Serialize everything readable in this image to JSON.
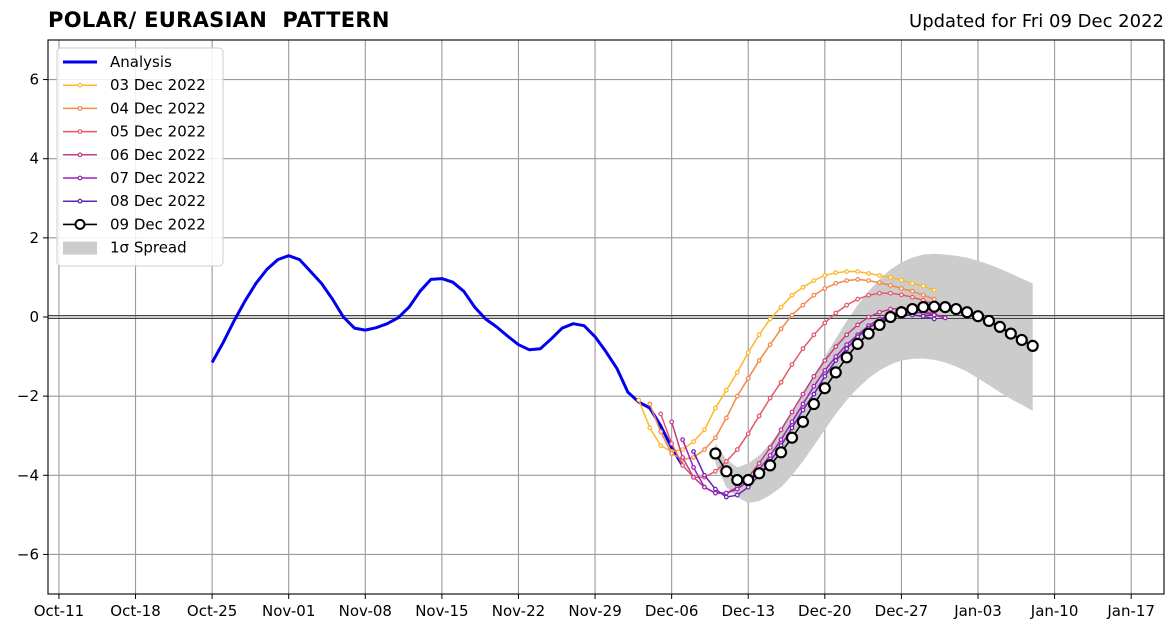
{
  "title": "POLAR/ EURASIAN  PATTERN",
  "updated": "Updated for Fri 09 Dec 2022",
  "chart_data": {
    "type": "line",
    "title": "POLAR/ EURASIAN  PATTERN",
    "subtitle": "Updated for Fri 09 Dec 2022",
    "xlabel": "",
    "ylabel": "",
    "xlim": [
      "2022-10-10",
      "2023-01-20"
    ],
    "ylim": [
      -7,
      7
    ],
    "grid": true,
    "legend_position": "top-left",
    "x_ticks": [
      "Oct-11",
      "Oct-18",
      "Oct-25",
      "Nov-01",
      "Nov-08",
      "Nov-15",
      "Nov-22",
      "Nov-29",
      "Dec-06",
      "Dec-13",
      "Dec-20",
      "Dec-27",
      "Jan-03",
      "Jan-10",
      "Jan-17"
    ],
    "x_tick_dates": [
      "2022-10-11",
      "2022-10-18",
      "2022-10-25",
      "2022-11-01",
      "2022-11-08",
      "2022-11-15",
      "2022-11-22",
      "2022-11-29",
      "2022-12-06",
      "2022-12-13",
      "2022-12-20",
      "2022-12-27",
      "2023-01-03",
      "2023-01-10",
      "2023-01-17"
    ],
    "y_ticks": [
      -6,
      -4,
      -2,
      0,
      2,
      4,
      6
    ],
    "y_tick_labels": [
      "−6",
      "−4",
      "−2",
      "0",
      "2",
      "4",
      "6"
    ],
    "legend": [
      "Analysis",
      "03 Dec 2022",
      "04 Dec 2022",
      "05 Dec 2022",
      "06 Dec 2022",
      "07 Dec 2022",
      "08 Dec 2022",
      "09 Dec 2022",
      "1σ Spread"
    ],
    "series": [
      {
        "name": "Analysis",
        "color": "#0000ee",
        "start": "2022-10-25",
        "values": [
          -1.15,
          -0.65,
          -0.1,
          0.4,
          0.85,
          1.2,
          1.45,
          1.55,
          1.45,
          1.15,
          0.85,
          0.45,
          0.0,
          -0.28,
          -0.33,
          -0.27,
          -0.17,
          -0.02,
          0.25,
          0.65,
          0.95,
          0.97,
          0.88,
          0.65,
          0.25,
          -0.05,
          -0.25,
          -0.48,
          -0.7,
          -0.83,
          -0.8,
          -0.55,
          -0.28,
          -0.17,
          -0.22,
          -0.5,
          -0.88,
          -1.3,
          -1.9,
          -2.15,
          -2.3,
          -2.75,
          -3.3,
          -3.75
        ]
      },
      {
        "name": "03 Dec 2022",
        "color": "#fdb827",
        "start": "2022-12-03",
        "values": [
          -2.1,
          -2.8,
          -3.25,
          -3.4,
          -3.35,
          -3.15,
          -2.85,
          -2.3,
          -1.85,
          -1.4,
          -0.9,
          -0.45,
          -0.05,
          0.25,
          0.55,
          0.75,
          0.92,
          1.05,
          1.12,
          1.15,
          1.15,
          1.1,
          1.05,
          1.0,
          0.93,
          0.85,
          0.78,
          0.68
        ]
      },
      {
        "name": "04 Dec 2022",
        "color": "#f4874a",
        "start": "2022-12-04",
        "values": [
          -2.2,
          -2.9,
          -3.45,
          -3.6,
          -3.55,
          -3.35,
          -3.05,
          -2.55,
          -2.0,
          -1.55,
          -1.1,
          -0.7,
          -0.3,
          0.05,
          0.3,
          0.55,
          0.72,
          0.85,
          0.92,
          0.95,
          0.92,
          0.87,
          0.8,
          0.72,
          0.65,
          0.55,
          0.45
        ]
      },
      {
        "name": "05 Dec 2022",
        "color": "#e3596a",
        "start": "2022-12-05",
        "values": [
          -2.45,
          -3.2,
          -3.75,
          -4.05,
          -4.05,
          -3.9,
          -3.65,
          -3.35,
          -2.95,
          -2.5,
          -2.05,
          -1.65,
          -1.2,
          -0.8,
          -0.45,
          -0.15,
          0.1,
          0.3,
          0.45,
          0.55,
          0.6,
          0.6,
          0.56,
          0.5,
          0.42,
          0.32,
          0.2
        ]
      },
      {
        "name": "06 Dec 2022",
        "color": "#c13d85",
        "start": "2022-12-06",
        "values": [
          -2.65,
          -3.55,
          -4.05,
          -4.3,
          -4.45,
          -4.45,
          -4.3,
          -4.05,
          -3.7,
          -3.3,
          -2.85,
          -2.4,
          -1.95,
          -1.5,
          -1.1,
          -0.75,
          -0.45,
          -0.2,
          0.0,
          0.12,
          0.2,
          0.22,
          0.2,
          0.15,
          0.08,
          -0.02
        ]
      },
      {
        "name": "07 Dec 2022",
        "color": "#a020b8",
        "start": "2022-12-07",
        "values": [
          -3.1,
          -3.8,
          -4.3,
          -4.45,
          -4.45,
          -4.35,
          -4.15,
          -3.85,
          -3.5,
          -3.1,
          -2.65,
          -2.2,
          -1.75,
          -1.35,
          -1.0,
          -0.7,
          -0.45,
          -0.22,
          -0.05,
          0.05,
          0.1,
          0.12,
          0.1,
          0.05,
          -0.02
        ]
      },
      {
        "name": "08 Dec 2022",
        "color": "#6a1fb0",
        "start": "2022-12-08",
        "values": [
          -3.4,
          -4.0,
          -4.35,
          -4.55,
          -4.5,
          -4.3,
          -4.0,
          -3.65,
          -3.25,
          -2.8,
          -2.35,
          -1.95,
          -1.5,
          -1.1,
          -0.8,
          -0.5,
          -0.28,
          -0.1,
          0.0,
          0.05,
          0.05,
          0.02,
          -0.05
        ]
      },
      {
        "name": "09 Dec 2022",
        "color": "#000000",
        "start": "2022-12-10",
        "values": [
          -3.45,
          -3.9,
          -4.12,
          -4.12,
          -3.95,
          -3.75,
          -3.42,
          -3.05,
          -2.65,
          -2.2,
          -1.8,
          -1.4,
          -1.02,
          -0.68,
          -0.42,
          -0.2,
          0.0,
          0.12,
          0.2,
          0.25,
          0.26,
          0.25,
          0.2,
          0.12,
          0.02,
          -0.1,
          -0.25,
          -0.42,
          -0.58,
          -0.73
        ]
      }
    ],
    "spread": {
      "name": "1σ Spread",
      "color": "#cccccc",
      "start": "2022-12-10",
      "upper": [
        -3.2,
        -3.6,
        -3.8,
        -3.7,
        -3.5,
        -3.2,
        -2.85,
        -2.45,
        -2.0,
        -1.5,
        -1.0,
        -0.55,
        -0.1,
        0.3,
        0.65,
        0.95,
        1.2,
        1.38,
        1.5,
        1.58,
        1.6,
        1.58,
        1.55,
        1.5,
        1.42,
        1.33,
        1.22,
        1.1,
        0.97,
        0.85
      ],
      "lower": [
        -3.7,
        -4.3,
        -4.55,
        -4.7,
        -4.65,
        -4.5,
        -4.3,
        -4.0,
        -3.65,
        -3.25,
        -2.85,
        -2.45,
        -2.1,
        -1.8,
        -1.55,
        -1.35,
        -1.2,
        -1.1,
        -1.06,
        -1.05,
        -1.08,
        -1.15,
        -1.25,
        -1.38,
        -1.55,
        -1.72,
        -1.9,
        -2.07,
        -2.22,
        -2.37
      ]
    }
  }
}
